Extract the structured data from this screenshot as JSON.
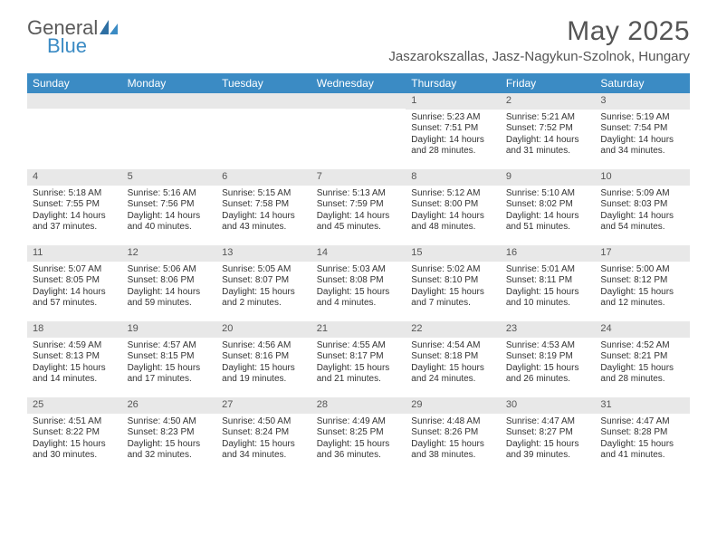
{
  "logo": {
    "general": "General",
    "blue": "Blue"
  },
  "title": "May 2025",
  "location": "Jaszarokszallas, Jasz-Nagykun-Szolnok, Hungary",
  "colors": {
    "header_bg": "#3b8bc4",
    "daynum_bg": "#e8e8e8",
    "text": "#333333",
    "title_text": "#555555",
    "logo_gray": "#5a5a5a",
    "logo_blue": "#3b8bc4",
    "background": "#ffffff"
  },
  "day_names": [
    "Sunday",
    "Monday",
    "Tuesday",
    "Wednesday",
    "Thursday",
    "Friday",
    "Saturday"
  ],
  "weeks": [
    [
      null,
      null,
      null,
      null,
      {
        "n": "1",
        "sr": "5:23 AM",
        "ss": "7:51 PM",
        "dl": "14 hours and 28 minutes."
      },
      {
        "n": "2",
        "sr": "5:21 AM",
        "ss": "7:52 PM",
        "dl": "14 hours and 31 minutes."
      },
      {
        "n": "3",
        "sr": "5:19 AM",
        "ss": "7:54 PM",
        "dl": "14 hours and 34 minutes."
      }
    ],
    [
      {
        "n": "4",
        "sr": "5:18 AM",
        "ss": "7:55 PM",
        "dl": "14 hours and 37 minutes."
      },
      {
        "n": "5",
        "sr": "5:16 AM",
        "ss": "7:56 PM",
        "dl": "14 hours and 40 minutes."
      },
      {
        "n": "6",
        "sr": "5:15 AM",
        "ss": "7:58 PM",
        "dl": "14 hours and 43 minutes."
      },
      {
        "n": "7",
        "sr": "5:13 AM",
        "ss": "7:59 PM",
        "dl": "14 hours and 45 minutes."
      },
      {
        "n": "8",
        "sr": "5:12 AM",
        "ss": "8:00 PM",
        "dl": "14 hours and 48 minutes."
      },
      {
        "n": "9",
        "sr": "5:10 AM",
        "ss": "8:02 PM",
        "dl": "14 hours and 51 minutes."
      },
      {
        "n": "10",
        "sr": "5:09 AM",
        "ss": "8:03 PM",
        "dl": "14 hours and 54 minutes."
      }
    ],
    [
      {
        "n": "11",
        "sr": "5:07 AM",
        "ss": "8:05 PM",
        "dl": "14 hours and 57 minutes."
      },
      {
        "n": "12",
        "sr": "5:06 AM",
        "ss": "8:06 PM",
        "dl": "14 hours and 59 minutes."
      },
      {
        "n": "13",
        "sr": "5:05 AM",
        "ss": "8:07 PM",
        "dl": "15 hours and 2 minutes."
      },
      {
        "n": "14",
        "sr": "5:03 AM",
        "ss": "8:08 PM",
        "dl": "15 hours and 4 minutes."
      },
      {
        "n": "15",
        "sr": "5:02 AM",
        "ss": "8:10 PM",
        "dl": "15 hours and 7 minutes."
      },
      {
        "n": "16",
        "sr": "5:01 AM",
        "ss": "8:11 PM",
        "dl": "15 hours and 10 minutes."
      },
      {
        "n": "17",
        "sr": "5:00 AM",
        "ss": "8:12 PM",
        "dl": "15 hours and 12 minutes."
      }
    ],
    [
      {
        "n": "18",
        "sr": "4:59 AM",
        "ss": "8:13 PM",
        "dl": "15 hours and 14 minutes."
      },
      {
        "n": "19",
        "sr": "4:57 AM",
        "ss": "8:15 PM",
        "dl": "15 hours and 17 minutes."
      },
      {
        "n": "20",
        "sr": "4:56 AM",
        "ss": "8:16 PM",
        "dl": "15 hours and 19 minutes."
      },
      {
        "n": "21",
        "sr": "4:55 AM",
        "ss": "8:17 PM",
        "dl": "15 hours and 21 minutes."
      },
      {
        "n": "22",
        "sr": "4:54 AM",
        "ss": "8:18 PM",
        "dl": "15 hours and 24 minutes."
      },
      {
        "n": "23",
        "sr": "4:53 AM",
        "ss": "8:19 PM",
        "dl": "15 hours and 26 minutes."
      },
      {
        "n": "24",
        "sr": "4:52 AM",
        "ss": "8:21 PM",
        "dl": "15 hours and 28 minutes."
      }
    ],
    [
      {
        "n": "25",
        "sr": "4:51 AM",
        "ss": "8:22 PM",
        "dl": "15 hours and 30 minutes."
      },
      {
        "n": "26",
        "sr": "4:50 AM",
        "ss": "8:23 PM",
        "dl": "15 hours and 32 minutes."
      },
      {
        "n": "27",
        "sr": "4:50 AM",
        "ss": "8:24 PM",
        "dl": "15 hours and 34 minutes."
      },
      {
        "n": "28",
        "sr": "4:49 AM",
        "ss": "8:25 PM",
        "dl": "15 hours and 36 minutes."
      },
      {
        "n": "29",
        "sr": "4:48 AM",
        "ss": "8:26 PM",
        "dl": "15 hours and 38 minutes."
      },
      {
        "n": "30",
        "sr": "4:47 AM",
        "ss": "8:27 PM",
        "dl": "15 hours and 39 minutes."
      },
      {
        "n": "31",
        "sr": "4:47 AM",
        "ss": "8:28 PM",
        "dl": "15 hours and 41 minutes."
      }
    ]
  ],
  "labels": {
    "sunrise": "Sunrise:",
    "sunset": "Sunset:",
    "daylight": "Daylight:"
  }
}
